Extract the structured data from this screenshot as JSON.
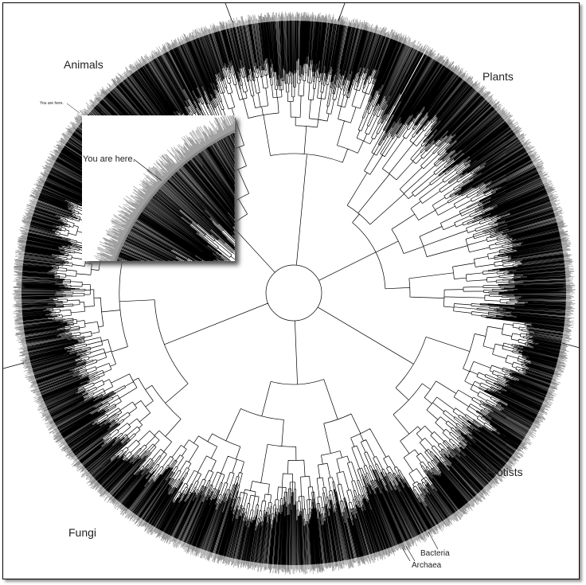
{
  "labels": {
    "animals": "Animals",
    "plants": "Plants",
    "protists": "Protists",
    "fungi": "Fungi",
    "bacteria": "Bacteria",
    "archaea": "Archaea",
    "you_are_here_small": "You are here.",
    "you_are_here_inset": "You are here."
  },
  "colors": {
    "branches": "#000000",
    "tips": "#8a8a8a",
    "inset_tips": "#a0a0a0"
  }
}
